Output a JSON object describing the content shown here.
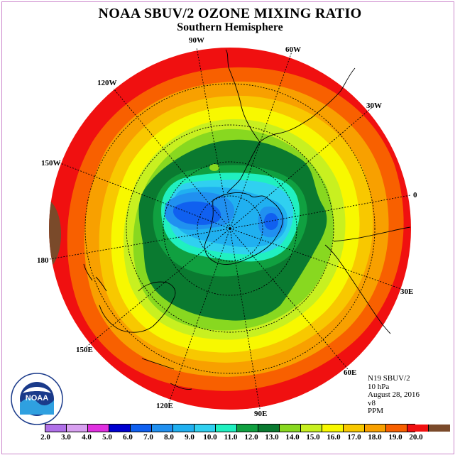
{
  "header": {
    "title": "NOAA SBUV/2 OZONE MIXING RATIO",
    "subtitle": "Southern Hemisphere"
  },
  "map": {
    "projection": "south-polar-stereographic",
    "longitude_labels": [
      "90W",
      "60W",
      "30W",
      "0",
      "30E",
      "60E",
      "90E",
      "120E",
      "150E",
      "180",
      "150W",
      "120W"
    ],
    "ozone_field_levels_ppm": [
      10.0,
      11.0,
      12.0,
      13.0,
      14.0,
      15.0,
      16.0,
      17.0,
      18.0,
      19.0
    ]
  },
  "info": {
    "instrument": "N19 SBUV/2",
    "pressure": "10 hPa",
    "date": "August 28, 2016",
    "version": "v8",
    "units": "PPM"
  },
  "logo": {
    "text": "NOAA",
    "ring_text": "NATIONAL OCEANIC AND ATMOSPHERIC ADMINISTRATION · U.S. DEPARTMENT OF COMMERCE"
  },
  "colorbar": {
    "labels": [
      "2.0",
      "3.0",
      "4.0",
      "5.0",
      "6.0",
      "7.0",
      "8.0",
      "9.0",
      "10.0",
      "11.0",
      "12.0",
      "13.0",
      "14.0",
      "15.0",
      "16.0",
      "17.0",
      "18.0",
      "19.0",
      "20.0"
    ],
    "colors": [
      "#b070e8",
      "#d8a0f0",
      "#e030e0",
      "#0000d0",
      "#1060f0",
      "#2090f0",
      "#20b0f0",
      "#30d0f0",
      "#20f0c0",
      "#10a040",
      "#0a7a30",
      "#88d820",
      "#c8f020",
      "#f8f800",
      "#f8c800",
      "#f8a000",
      "#f86000",
      "#f01010",
      "#7a4a2a"
    ]
  }
}
